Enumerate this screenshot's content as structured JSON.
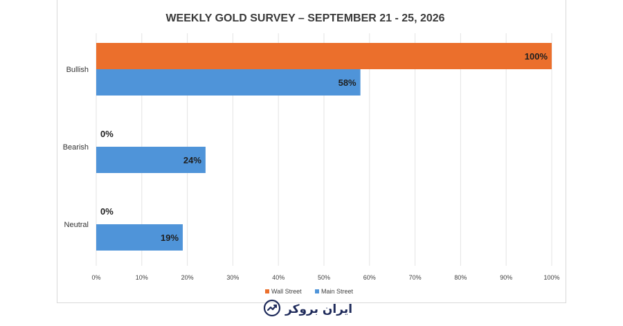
{
  "chart_data": {
    "type": "bar",
    "orientation": "horizontal",
    "title": "WEEKLY GOLD SURVEY – SEPTEMBER 21 - 25, 2026",
    "categories": [
      "Bullish",
      "Bearish",
      "Neutral"
    ],
    "series": [
      {
        "name": "Wall Street",
        "color": "#eb6f2c",
        "values": [
          100,
          0,
          0
        ]
      },
      {
        "name": "Main Street",
        "color": "#4f94d9",
        "values": [
          58,
          24,
          19
        ]
      }
    ],
    "xlim": [
      0,
      100
    ],
    "xticks": [
      0,
      10,
      20,
      30,
      40,
      50,
      60,
      70,
      80,
      90,
      100
    ],
    "tick_suffix": "%",
    "grid": "vertical",
    "legend": "bottom-center",
    "data_labels": true
  },
  "footer": {
    "logo_text": "ایران بروکر",
    "logo_icon": "chart-trend-icon"
  }
}
